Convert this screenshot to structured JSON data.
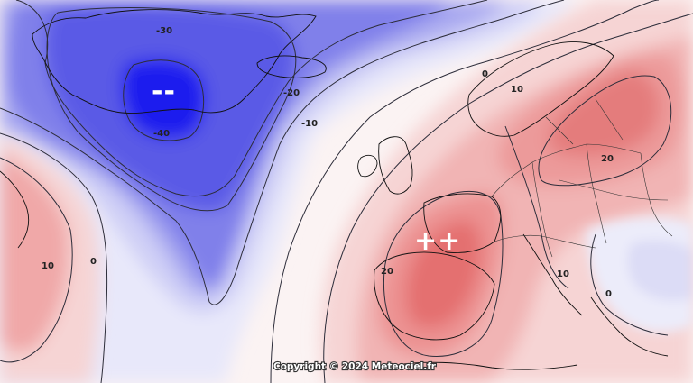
{
  "map": {
    "contour_labels": {
      "neg30": "-30",
      "neg20": "-20",
      "neg10": "-10",
      "neg40": "-40",
      "zero_north": "0",
      "zero_west": "0",
      "zero_balkans": "0",
      "ten_scand": "10",
      "ten_west": "10",
      "ten_italy": "10",
      "twenty_iberia": "20",
      "twenty_scand": "20"
    },
    "markers": {
      "low": "--",
      "high": "++"
    },
    "copyright": "Copyright © 2024 Meteociel.fr",
    "colors": {
      "deep_blue": "#1a1aee",
      "blue": "#5a5ae6",
      "light_blue": "#d8d8f6",
      "pale_red": "#f6d4d4",
      "red": "#ec8888",
      "deep_red": "#e06a6a"
    }
  }
}
